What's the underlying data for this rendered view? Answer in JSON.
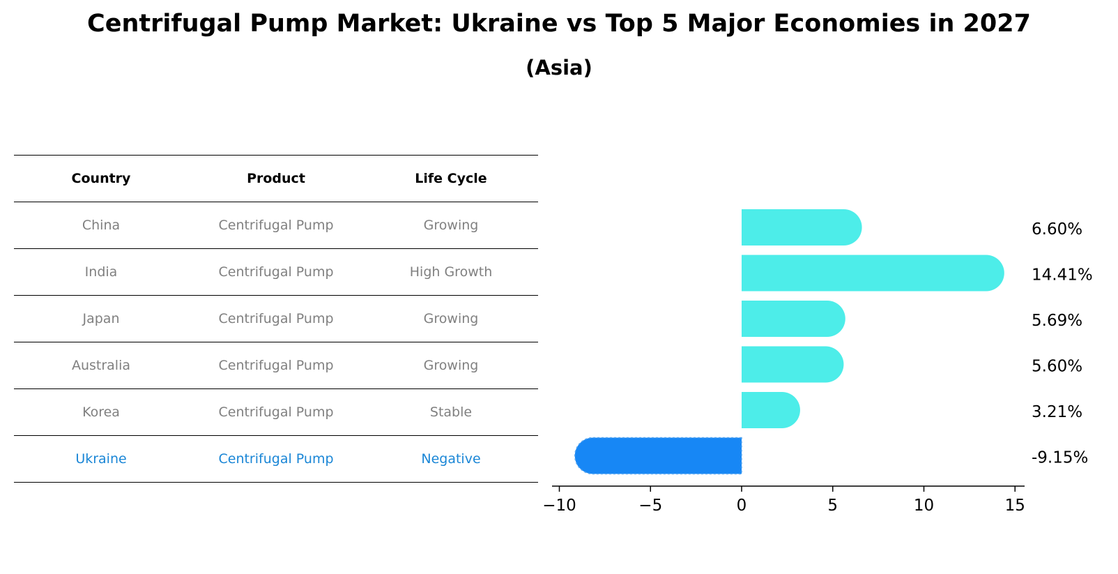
{
  "title": "Centrifugal Pump Market: Ukraine vs Top 5 Major Economies in 2027",
  "subtitle": "(Asia)",
  "table": {
    "headers": [
      "Country",
      "Product",
      "Life Cycle"
    ],
    "rows": [
      {
        "country": "China",
        "product": "Centrifugal Pump",
        "life_cycle": "Growing"
      },
      {
        "country": "India",
        "product": "Centrifugal Pump",
        "life_cycle": "High Growth"
      },
      {
        "country": "Japan",
        "product": "Centrifugal Pump",
        "life_cycle": "Growing"
      },
      {
        "country": "Australia",
        "product": "Centrifugal Pump",
        "life_cycle": "Growing"
      },
      {
        "country": "Korea",
        "product": "Centrifugal Pump",
        "life_cycle": "Stable"
      },
      {
        "country": "Ukraine",
        "product": "Centrifugal Pump",
        "life_cycle": "Negative"
      }
    ]
  },
  "chart_data": {
    "type": "bar",
    "orientation": "horizontal",
    "categories": [
      "China",
      "India",
      "Japan",
      "Australia",
      "Korea",
      "Ukraine"
    ],
    "values": [
      6.6,
      14.41,
      5.69,
      5.6,
      3.21,
      -9.15
    ],
    "value_labels": [
      "6.60%",
      "14.41%",
      "5.69%",
      "5.60%",
      "3.21%",
      "-9.15%"
    ],
    "xlim": [
      -10,
      15.5
    ],
    "xticks": [
      -10,
      -5,
      0,
      5,
      10,
      15
    ],
    "xtick_labels": [
      "−10",
      "−5",
      "0",
      "5",
      "10",
      "15"
    ],
    "xlabel": "",
    "ylabel": "",
    "colors": {
      "default": "#4dede9",
      "highlight": "#1787f5"
    }
  }
}
